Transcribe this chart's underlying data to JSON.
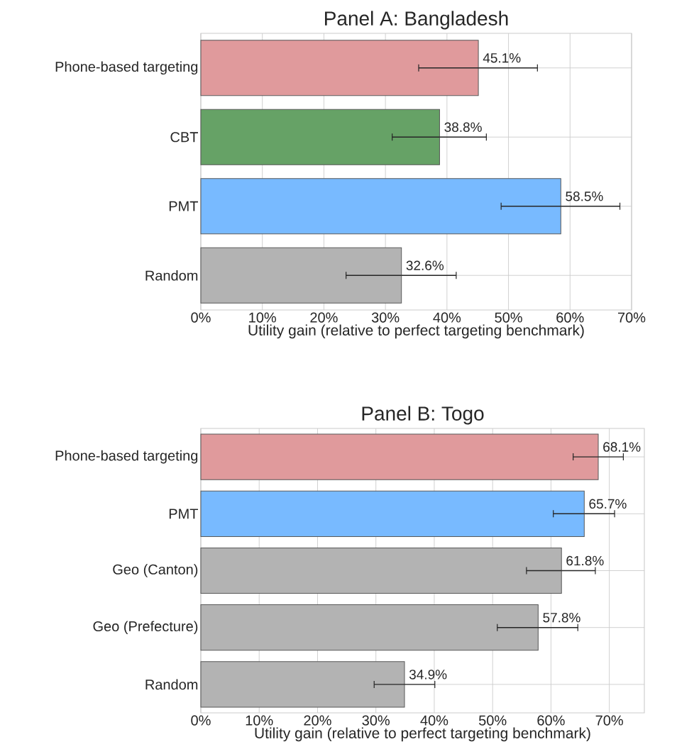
{
  "chart_data": [
    {
      "type": "bar",
      "orientation": "horizontal",
      "title": "Panel A: Bangladesh",
      "xlabel": "Utility gain (relative to perfect targeting benchmark)",
      "categories": [
        "Phone-based targeting",
        "CBT",
        "PMT",
        "Random"
      ],
      "values": [
        45.1,
        38.8,
        58.5,
        32.6
      ],
      "colors": [
        "#e09a9c",
        "#66a266",
        "#78baff",
        "#b3b3b3"
      ],
      "errors": [
        [
          35.4,
          54.7
        ],
        [
          31.1,
          46.4
        ],
        [
          48.8,
          68.1
        ],
        [
          23.6,
          41.5
        ]
      ],
      "value_labels": [
        "45.1%",
        "38.8%",
        "58.5%",
        "32.6%"
      ],
      "xlim": [
        0,
        70
      ],
      "xticks": [
        {
          "value": 0,
          "label": "0%"
        },
        {
          "value": 10,
          "label": "10%"
        },
        {
          "value": 20,
          "label": "20%"
        },
        {
          "value": 30,
          "label": "30%"
        },
        {
          "value": 40,
          "label": "40%"
        },
        {
          "value": 50,
          "label": "50%"
        },
        {
          "value": 60,
          "label": "60%"
        },
        {
          "value": 70,
          "label": "70%"
        }
      ],
      "grid": true
    },
    {
      "type": "bar",
      "orientation": "horizontal",
      "title": "Panel B: Togo",
      "xlabel": "Utility gain (relative to perfect targeting benchmark)",
      "categories": [
        "Phone-based targeting",
        "PMT",
        "Geo (Canton)",
        "Geo (Prefecture)",
        "Random"
      ],
      "values": [
        68.1,
        65.7,
        61.8,
        57.8,
        34.9
      ],
      "colors": [
        "#e09a9c",
        "#78baff",
        "#b3b3b3",
        "#b3b3b3",
        "#b3b3b3"
      ],
      "errors": [
        [
          63.8,
          72.4
        ],
        [
          60.4,
          70.9
        ],
        [
          55.8,
          67.6
        ],
        [
          50.8,
          64.6
        ],
        [
          29.7,
          40.1
        ]
      ],
      "value_labels": [
        "68.1%",
        "65.7%",
        "61.8%",
        "57.8%",
        "34.9%"
      ],
      "xlim": [
        0,
        76
      ],
      "xticks": [
        {
          "value": 0,
          "label": "0%"
        },
        {
          "value": 10,
          "label": "10%"
        },
        {
          "value": 20,
          "label": "20%"
        },
        {
          "value": 30,
          "label": "30%"
        },
        {
          "value": 40,
          "label": "40%"
        },
        {
          "value": 50,
          "label": "50%"
        },
        {
          "value": 60,
          "label": "60%"
        },
        {
          "value": 70,
          "label": "70%"
        }
      ],
      "grid": true
    }
  ]
}
